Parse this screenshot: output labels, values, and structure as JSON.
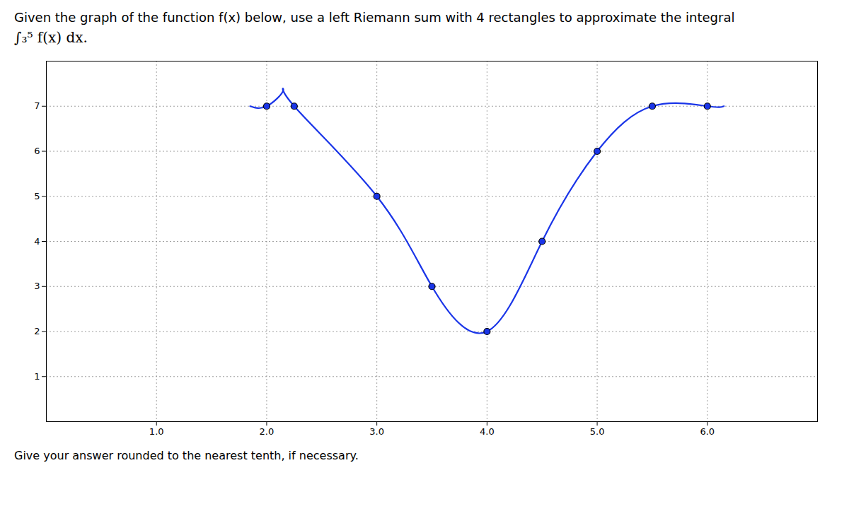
{
  "chart_data": {
    "type": "line",
    "title": "Given the graph of the function f(x) below, use a left Riemann sum with 4 rectangles to approximate the integral",
    "subtitle": "∫₃⁵ f(x) dx.",
    "footer": "Give your answer rounded to the nearest tenth, if necessary.",
    "series": [
      {
        "type": "line",
        "color": "#1a35e8",
        "line_style": "solid",
        "x": [
          1.85,
          2.0,
          2.15,
          2.25,
          3.0,
          3.5,
          4.0,
          4.5,
          5.0,
          5.5,
          6.0,
          6.15
        ],
        "values": [
          7.0,
          7.0,
          7.35,
          7.0,
          5.0,
          3.0,
          2.0,
          4.0,
          6.0,
          7.0,
          7.0,
          7.0
        ]
      },
      {
        "type": "scatter",
        "color": "#1a35e8",
        "marker": "circle",
        "x": [
          2.0,
          2.25,
          3.0,
          3.5,
          4.0,
          4.5,
          5.0,
          5.5,
          6.0
        ],
        "values": [
          7.0,
          7.0,
          5.0,
          3.0,
          2.0,
          4.0,
          6.0,
          7.0,
          7.0
        ]
      }
    ],
    "xlim": [
      0,
      7.0
    ],
    "ylim": [
      0,
      8.0
    ],
    "xticks": [
      1,
      2,
      3,
      4,
      5,
      6
    ],
    "yticks": [
      1,
      2,
      3,
      4,
      5,
      6,
      7
    ],
    "grid": true
  }
}
